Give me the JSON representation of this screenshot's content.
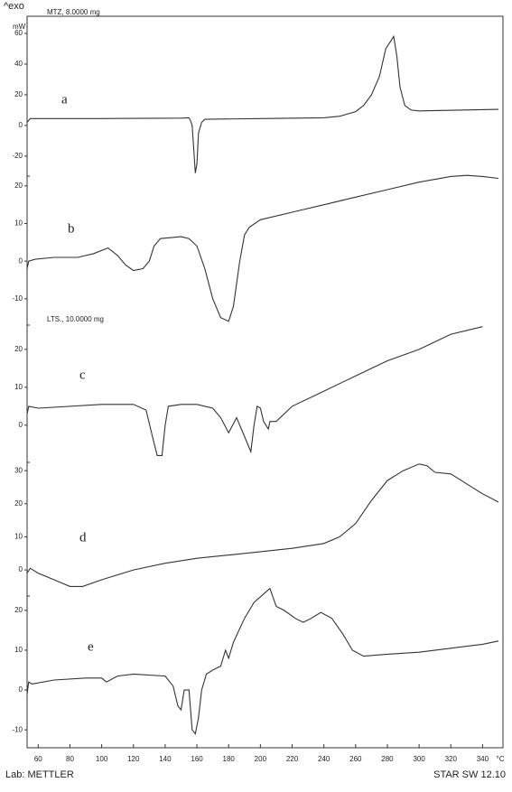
{
  "header": {
    "exo": "^exo"
  },
  "footer": {
    "lab": "Lab: METTLER",
    "software": "STAR SW 12.10"
  },
  "chart_data": [
    {
      "type": "line",
      "annotation": "a",
      "subtitle": "MTZ, 8.0000 mg",
      "y_unit": "mW",
      "color": "#333",
      "xlim": [
        53,
        350
      ],
      "ylim": [
        -33,
        70
      ],
      "yticks": [
        -20,
        0,
        20,
        40,
        60
      ],
      "x": [
        53,
        55,
        60,
        100,
        150,
        155,
        156,
        157,
        158,
        159,
        160,
        161,
        163,
        165,
        200,
        240,
        250,
        260,
        265,
        270,
        275,
        279,
        284,
        286,
        288,
        291,
        295,
        300,
        350
      ],
      "values": [
        2,
        4.5,
        4.5,
        4.5,
        4.8,
        5,
        3,
        0,
        -15,
        -31,
        -25,
        -5,
        2,
        4,
        4.5,
        5,
        6,
        9,
        13,
        20,
        32,
        50,
        58,
        45,
        25,
        13,
        10,
        9.5,
        10.5
      ]
    },
    {
      "type": "line",
      "annotation": "b",
      "color": "#333",
      "xlim": [
        53,
        350
      ],
      "ylim": [
        -17,
        22.6
      ],
      "yticks": [
        -10,
        0,
        10,
        20
      ],
      "x": [
        53,
        54,
        58,
        70,
        85,
        95,
        104,
        110,
        115,
        120,
        126,
        130,
        133,
        137,
        150,
        155,
        160,
        165,
        170,
        175,
        180,
        183,
        187,
        190,
        193,
        200,
        220,
        240,
        260,
        280,
        300,
        320,
        330,
        340,
        350
      ],
      "values": [
        -2,
        0,
        0.5,
        1,
        1,
        2,
        3.5,
        1.5,
        -1,
        -2.5,
        -2,
        0,
        4,
        6,
        6.5,
        6,
        4,
        -2,
        -10,
        -15,
        -16,
        -12,
        0,
        7,
        9,
        11,
        13,
        15,
        17,
        19,
        21,
        22.5,
        22.8,
        22.5,
        22
      ]
    },
    {
      "type": "line",
      "annotation": "c",
      "subtitle": "LTS., 10.0000 mg",
      "color": "#333",
      "xlim": [
        53,
        350
      ],
      "ylim": [
        -9.8,
        26.4
      ],
      "yticks": [
        0,
        10,
        20
      ],
      "x": [
        53,
        54,
        60,
        100,
        120,
        128,
        132,
        135,
        138,
        140,
        142,
        150,
        160,
        170,
        175,
        180,
        185,
        190,
        194,
        196,
        198,
        200,
        202,
        205,
        206,
        210,
        220,
        240,
        260,
        280,
        300,
        320,
        340
      ],
      "values": [
        3,
        5,
        4.5,
        5.5,
        5.5,
        4,
        -3,
        -8,
        -8,
        0,
        5,
        5.5,
        5.5,
        4.5,
        2,
        -2,
        2,
        -3,
        -7,
        0,
        5,
        4.5,
        1,
        -1,
        1,
        1,
        5,
        9,
        13,
        17,
        20,
        24,
        26
      ]
    },
    {
      "type": "line",
      "annotation": "d",
      "color": "#333",
      "xlim": [
        53,
        350
      ],
      "ylim": [
        -7.9,
        32.5
      ],
      "yticks": [
        0,
        10,
        20,
        30
      ],
      "x": [
        53,
        55,
        60,
        70,
        80,
        88,
        100,
        120,
        140,
        160,
        180,
        200,
        220,
        240,
        250,
        260,
        270,
        280,
        290,
        300,
        305,
        310,
        320,
        330,
        340,
        350
      ],
      "values": [
        -1,
        0.5,
        -1,
        -3,
        -5,
        -5,
        -3,
        0,
        2,
        3.5,
        4.5,
        5.5,
        6.5,
        8,
        10,
        14,
        21,
        27,
        30,
        32,
        31.5,
        29.5,
        29,
        26,
        23,
        20.5
      ]
    },
    {
      "type": "line",
      "annotation": "e",
      "color": "#333",
      "xlim": [
        53,
        350
      ],
      "ylim": [
        -14.5,
        23.6
      ],
      "yticks": [
        -10,
        0,
        10,
        20
      ],
      "x": [
        53,
        54,
        56,
        70,
        90,
        100,
        103,
        110,
        120,
        140,
        145,
        148,
        150,
        152,
        155,
        157,
        159,
        161,
        163,
        166,
        170,
        175,
        178,
        180,
        183,
        190,
        196,
        206,
        210,
        215,
        222,
        227,
        232,
        238,
        245,
        252,
        258,
        265,
        280,
        300,
        320,
        340,
        350
      ],
      "values": [
        -1,
        2,
        1.5,
        2.5,
        3,
        3,
        2,
        3.5,
        4,
        3.5,
        1,
        -4,
        -5,
        0,
        0,
        -10,
        -11,
        -7,
        0,
        4,
        5,
        6,
        10,
        8,
        12,
        18,
        22,
        25.5,
        21,
        20,
        18,
        17,
        18,
        19.5,
        18,
        14,
        10,
        8.5,
        9,
        9.5,
        10.5,
        11.5,
        12.3
      ],
      "xticks": [
        60,
        80,
        100,
        120,
        140,
        160,
        180,
        200,
        220,
        240,
        260,
        280,
        300,
        320,
        340
      ],
      "x_unit": "°C"
    }
  ]
}
